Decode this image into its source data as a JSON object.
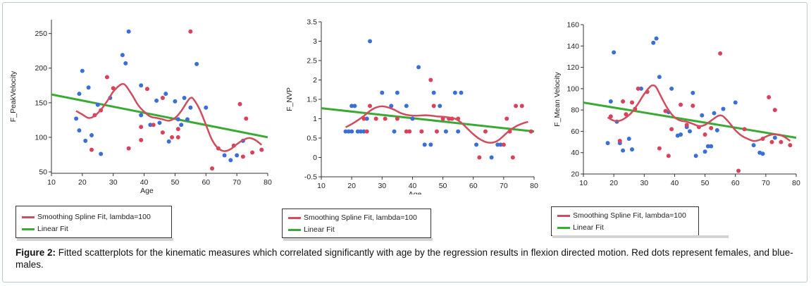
{
  "colors": {
    "female": "#d9425a",
    "male": "#3a6fd8",
    "spline": "#d14c5c",
    "linear": "#3aaa35"
  },
  "legend": {
    "spline_label": "Smoothing Spline Fit, lambda=100",
    "linear_label": "Linear Fit"
  },
  "caption": {
    "prefix": "Figure 2:",
    "text": " Fitted scatterplots for the kinematic measures which correlated significantly with age by the regression results in flexion directed motion. Red dots represent females, and blue-males."
  },
  "chart_data": [
    {
      "type": "scatter",
      "xlabel": "Age",
      "ylabel": "F_PeakVelocity",
      "xlim": [
        10,
        80
      ],
      "ylim": [
        48,
        270
      ],
      "xticks": [
        10,
        20,
        30,
        40,
        50,
        60,
        70,
        80
      ],
      "yticks": [
        50,
        100,
        150,
        200,
        250
      ],
      "male": [
        [
          18,
          127
        ],
        [
          19,
          110
        ],
        [
          19,
          163
        ],
        [
          20,
          196
        ],
        [
          21,
          95
        ],
        [
          22,
          172
        ],
        [
          23,
          103
        ],
        [
          25,
          147
        ],
        [
          26,
          76
        ],
        [
          29,
          157
        ],
        [
          33,
          219
        ],
        [
          34,
          207
        ],
        [
          35,
          253
        ],
        [
          39,
          175
        ],
        [
          39,
          132
        ],
        [
          42,
          118
        ],
        [
          44,
          153
        ],
        [
          45,
          121
        ],
        [
          47,
          163
        ],
        [
          48,
          94
        ],
        [
          50,
          152
        ],
        [
          51,
          126
        ],
        [
          52,
          118
        ],
        [
          53,
          157
        ],
        [
          54,
          126
        ],
        [
          55,
          143
        ],
        [
          57,
          206
        ],
        [
          60,
          143
        ],
        [
          66,
          74
        ],
        [
          68,
          67
        ],
        [
          70,
          74
        ],
        [
          72,
          95
        ]
      ],
      "female": [
        [
          23,
          82
        ],
        [
          24,
          132
        ],
        [
          26,
          139
        ],
        [
          28,
          187
        ],
        [
          30,
          171
        ],
        [
          35,
          84
        ],
        [
          39,
          115
        ],
        [
          39,
          96
        ],
        [
          41,
          170
        ],
        [
          43,
          118
        ],
        [
          46,
          107
        ],
        [
          46,
          157
        ],
        [
          49,
          100
        ],
        [
          51,
          100
        ],
        [
          51,
          112
        ],
        [
          55,
          253
        ],
        [
          62,
          55
        ],
        [
          64,
          84
        ],
        [
          69,
          88
        ],
        [
          71,
          148
        ],
        [
          72,
          72
        ],
        [
          73,
          127
        ],
        [
          75,
          78
        ],
        [
          78,
          82
        ]
      ],
      "spline": [
        [
          18,
          138
        ],
        [
          20,
          133
        ],
        [
          22,
          128
        ],
        [
          24,
          131
        ],
        [
          26,
          140
        ],
        [
          28,
          152
        ],
        [
          30,
          166
        ],
        [
          32,
          175
        ],
        [
          33,
          177
        ],
        [
          34,
          175
        ],
        [
          36,
          162
        ],
        [
          38,
          147
        ],
        [
          40,
          137
        ],
        [
          42,
          130
        ],
        [
          44,
          128
        ],
        [
          46,
          126
        ],
        [
          48,
          124
        ],
        [
          50,
          128
        ],
        [
          52,
          138
        ],
        [
          54,
          152
        ],
        [
          55,
          157
        ],
        [
          56,
          155
        ],
        [
          58,
          140
        ],
        [
          60,
          118
        ],
        [
          62,
          96
        ],
        [
          64,
          84
        ],
        [
          66,
          80
        ],
        [
          68,
          83
        ],
        [
          70,
          90
        ],
        [
          72,
          96
        ],
        [
          74,
          99
        ],
        [
          76,
          96
        ],
        [
          78,
          89
        ]
      ],
      "linear": [
        [
          10,
          162
        ],
        [
          80,
          100
        ]
      ]
    },
    {
      "type": "scatter",
      "xlabel": "Age",
      "ylabel": "F_NVP",
      "xlim": [
        10,
        80
      ],
      "ylim": [
        -0.5,
        3.5
      ],
      "xticks": [
        10,
        20,
        30,
        40,
        50,
        60,
        70,
        80
      ],
      "yticks": [
        -0.5,
        0,
        0.5,
        1,
        1.5,
        2,
        2.5,
        3,
        3.5
      ],
      "male": [
        [
          18,
          0.67
        ],
        [
          19,
          0.67
        ],
        [
          20,
          0.67
        ],
        [
          20,
          1.33
        ],
        [
          21,
          1.33
        ],
        [
          22,
          0.67
        ],
        [
          23,
          0.67
        ],
        [
          24,
          0.67
        ],
        [
          25,
          1
        ],
        [
          26,
          3
        ],
        [
          30,
          1.67
        ],
        [
          33,
          1.33
        ],
        [
          34,
          0.67
        ],
        [
          35,
          1.67
        ],
        [
          38,
          1.33
        ],
        [
          40,
          1
        ],
        [
          42,
          2.33
        ],
        [
          44,
          0.33
        ],
        [
          46,
          0.33
        ],
        [
          47,
          1.67
        ],
        [
          49,
          1.33
        ],
        [
          51,
          0.67
        ],
        [
          52,
          1
        ],
        [
          54,
          1.67
        ],
        [
          55,
          0.67
        ],
        [
          56,
          1.67
        ],
        [
          61,
          0.33
        ],
        [
          66,
          0
        ],
        [
          68,
          0.33
        ],
        [
          69,
          0.33
        ]
      ],
      "female": [
        [
          24,
          1
        ],
        [
          25,
          0.67
        ],
        [
          26,
          1.33
        ],
        [
          28,
          1
        ],
        [
          31,
          1
        ],
        [
          35,
          1
        ],
        [
          38,
          0.67
        ],
        [
          39,
          0.67
        ],
        [
          43,
          0.67
        ],
        [
          46,
          2
        ],
        [
          47,
          1.33
        ],
        [
          48,
          0.67
        ],
        [
          50,
          1
        ],
        [
          52,
          1
        ],
        [
          53,
          1
        ],
        [
          55,
          1
        ],
        [
          62,
          0
        ],
        [
          64,
          0.67
        ],
        [
          70,
          0.33
        ],
        [
          71,
          1
        ],
        [
          72,
          0.67
        ],
        [
          73,
          0
        ],
        [
          74,
          1.33
        ],
        [
          76,
          1.33
        ],
        [
          79,
          0.67
        ]
      ],
      "spline": [
        [
          18,
          0.78
        ],
        [
          20,
          0.86
        ],
        [
          22,
          0.96
        ],
        [
          24,
          1.07
        ],
        [
          26,
          1.2
        ],
        [
          28,
          1.29
        ],
        [
          30,
          1.32
        ],
        [
          32,
          1.29
        ],
        [
          34,
          1.23
        ],
        [
          36,
          1.15
        ],
        [
          38,
          1.1
        ],
        [
          40,
          1.08
        ],
        [
          42,
          1.08
        ],
        [
          44,
          1.09
        ],
        [
          46,
          1.08
        ],
        [
          48,
          1.06
        ],
        [
          50,
          1.05
        ],
        [
          52,
          1.03
        ],
        [
          54,
          1.0
        ],
        [
          56,
          0.9
        ],
        [
          58,
          0.75
        ],
        [
          60,
          0.6
        ],
        [
          62,
          0.48
        ],
        [
          64,
          0.4
        ],
        [
          66,
          0.38
        ],
        [
          68,
          0.43
        ],
        [
          70,
          0.56
        ],
        [
          72,
          0.7
        ],
        [
          74,
          0.8
        ],
        [
          76,
          0.87
        ],
        [
          78,
          0.92
        ]
      ],
      "linear": [
        [
          10,
          1.27
        ],
        [
          80,
          0.67
        ]
      ]
    },
    {
      "type": "scatter",
      "xlabel": "",
      "ylabel": "F_Mean Velocity",
      "xlim": [
        10,
        80
      ],
      "ylim": [
        20,
        160
      ],
      "xticks": [
        10,
        20,
        30,
        40,
        50,
        60,
        70,
        80
      ],
      "yticks": [
        20,
        40,
        60,
        80,
        100,
        120,
        140,
        160
      ],
      "male": [
        [
          18,
          49
        ],
        [
          19,
          88
        ],
        [
          20,
          134
        ],
        [
          21,
          69
        ],
        [
          22,
          49
        ],
        [
          23,
          42
        ],
        [
          25,
          53
        ],
        [
          26,
          43
        ],
        [
          29,
          100
        ],
        [
          33,
          143
        ],
        [
          34,
          147
        ],
        [
          35,
          111
        ],
        [
          38,
          78
        ],
        [
          39,
          100
        ],
        [
          41,
          56
        ],
        [
          42,
          57
        ],
        [
          44,
          64
        ],
        [
          45,
          60
        ],
        [
          46,
          96
        ],
        [
          47,
          37
        ],
        [
          49,
          75
        ],
        [
          50,
          41
        ],
        [
          51,
          46
        ],
        [
          52,
          46
        ],
        [
          53,
          77
        ],
        [
          54,
          61
        ],
        [
          56,
          81
        ],
        [
          60,
          87
        ],
        [
          66,
          47
        ],
        [
          68,
          40
        ],
        [
          69,
          39
        ],
        [
          73,
          54
        ]
      ],
      "female": [
        [
          19,
          74
        ],
        [
          22,
          51
        ],
        [
          23,
          88
        ],
        [
          24,
          76
        ],
        [
          26,
          87
        ],
        [
          27,
          81
        ],
        [
          28,
          100
        ],
        [
          31,
          97
        ],
        [
          35,
          44
        ],
        [
          37,
          79
        ],
        [
          38,
          37
        ],
        [
          39,
          62
        ],
        [
          42,
          85
        ],
        [
          44,
          66
        ],
        [
          46,
          84
        ],
        [
          48,
          64
        ],
        [
          50,
          57
        ],
        [
          52,
          63
        ],
        [
          55,
          133
        ],
        [
          61,
          23
        ],
        [
          63,
          62
        ],
        [
          69,
          53
        ],
        [
          71,
          92
        ],
        [
          72,
          50
        ],
        [
          73,
          80
        ],
        [
          75,
          50
        ],
        [
          78,
          47
        ]
      ],
      "spline": [
        [
          18,
          73
        ],
        [
          20,
          70
        ],
        [
          22,
          70
        ],
        [
          24,
          73
        ],
        [
          26,
          78
        ],
        [
          28,
          86
        ],
        [
          30,
          95
        ],
        [
          32,
          102
        ],
        [
          33,
          103
        ],
        [
          34,
          101
        ],
        [
          36,
          90
        ],
        [
          38,
          80
        ],
        [
          40,
          73
        ],
        [
          42,
          70
        ],
        [
          44,
          69
        ],
        [
          46,
          67
        ],
        [
          48,
          65
        ],
        [
          50,
          66
        ],
        [
          52,
          70
        ],
        [
          54,
          74
        ],
        [
          55,
          75
        ],
        [
          56,
          74
        ],
        [
          58,
          68
        ],
        [
          60,
          61
        ],
        [
          62,
          56
        ],
        [
          64,
          53
        ],
        [
          66,
          51
        ],
        [
          68,
          52
        ],
        [
          70,
          55
        ],
        [
          72,
          57
        ],
        [
          74,
          57
        ],
        [
          76,
          55
        ],
        [
          78,
          51
        ]
      ],
      "linear": [
        [
          10,
          87
        ],
        [
          80,
          54
        ]
      ]
    }
  ]
}
